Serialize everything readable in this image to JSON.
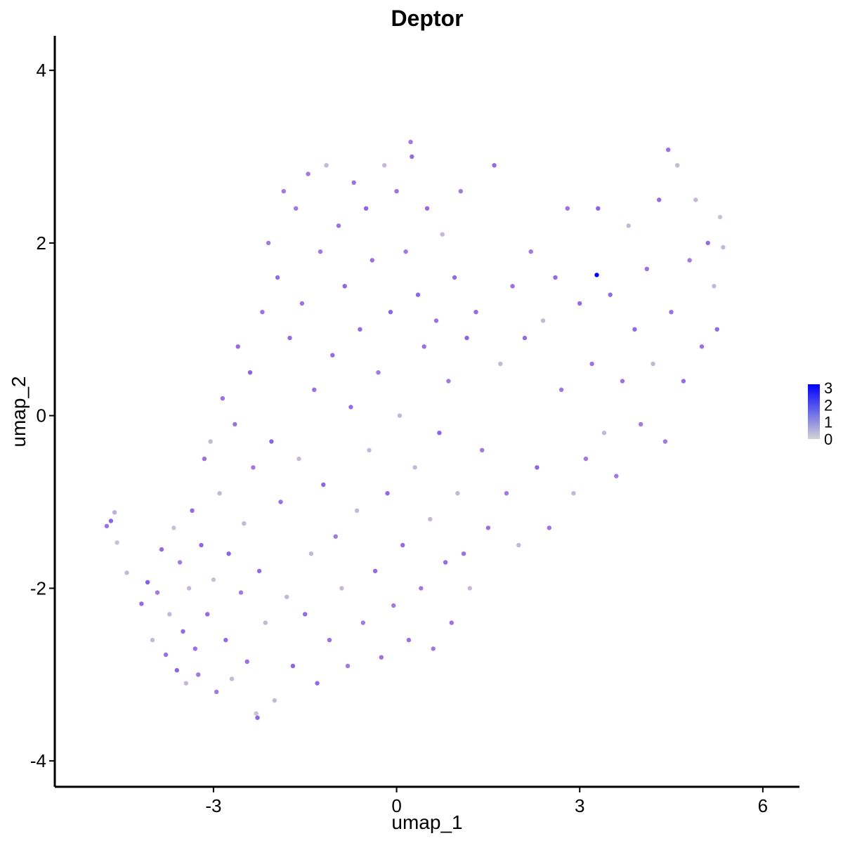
{
  "chart_data": {
    "type": "scatter",
    "title": "Deptor",
    "xlabel": "umap_1",
    "ylabel": "umap_2",
    "xlim": [
      -5.6,
      6.6
    ],
    "ylim": [
      -4.3,
      4.4
    ],
    "x_ticks": [
      -3,
      0,
      3,
      6
    ],
    "y_ticks": [
      -4,
      -2,
      0,
      2,
      4
    ],
    "x_tick_labels": [
      "-3",
      "0",
      "3",
      "6"
    ],
    "y_tick_labels": [
      "-4",
      "-2",
      "0",
      "2",
      "4"
    ],
    "grid": false,
    "legend_position": "right",
    "color_scale": {
      "low_color": "#d3d3d3",
      "high_color": "#0000ff",
      "min": 0,
      "max": 3.2,
      "breaks": [
        0,
        1,
        2,
        3
      ],
      "break_labels": [
        "0",
        "1",
        "2",
        "3"
      ]
    },
    "point_color_mid": "#9b6fe0",
    "highlight_point": {
      "x": 3.28,
      "y": 1.63,
      "value": 3.2
    },
    "points": [
      [
        -4.75,
        -1.28,
        1.1
      ],
      [
        -4.68,
        -1.22,
        1.3
      ],
      [
        -4.62,
        -1.12,
        0.4
      ],
      [
        -4.58,
        -1.47,
        0.2
      ],
      [
        -4.42,
        -1.82,
        0.3
      ],
      [
        -4.18,
        -2.18,
        1.2
      ],
      [
        -4.08,
        -1.93,
        1.4
      ],
      [
        -4.0,
        -2.6,
        0.3
      ],
      [
        -3.92,
        -2.05,
        1.0
      ],
      [
        -3.85,
        -1.55,
        1.2
      ],
      [
        -3.78,
        -2.77,
        1.1
      ],
      [
        -3.72,
        -2.3,
        0.3
      ],
      [
        -3.65,
        -1.3,
        0.2
      ],
      [
        -3.6,
        -2.95,
        1.3
      ],
      [
        -3.55,
        -1.7,
        1.0
      ],
      [
        -3.5,
        -2.5,
        1.2
      ],
      [
        -3.45,
        -3.1,
        0.3
      ],
      [
        -3.4,
        -2.0,
        0.3
      ],
      [
        -3.35,
        -1.1,
        1.2
      ],
      [
        -3.3,
        -2.7,
        1.1
      ],
      [
        -3.25,
        -3.0,
        1.0
      ],
      [
        -3.2,
        -1.5,
        1.3
      ],
      [
        -3.15,
        -0.5,
        1.1
      ],
      [
        -3.1,
        -2.3,
        1.2
      ],
      [
        -3.05,
        -0.3,
        0.3
      ],
      [
        -3.0,
        -1.9,
        0.2
      ],
      [
        -2.95,
        -3.2,
        1.0
      ],
      [
        -2.9,
        -0.9,
        0.3
      ],
      [
        -2.85,
        0.2,
        1.1
      ],
      [
        -2.8,
        -2.6,
        1.2
      ],
      [
        -2.75,
        -1.6,
        1.3
      ],
      [
        -2.7,
        -3.05,
        0.3
      ],
      [
        -2.65,
        -0.1,
        1.1
      ],
      [
        -2.6,
        0.8,
        1.2
      ],
      [
        -2.55,
        -2.05,
        1.0
      ],
      [
        -2.5,
        -1.25,
        0.3
      ],
      [
        -2.45,
        -2.85,
        1.1
      ],
      [
        -2.4,
        0.5,
        1.3
      ],
      [
        -2.35,
        -0.6,
        1.0
      ],
      [
        -2.3,
        -3.45,
        0.2
      ],
      [
        -2.25,
        -1.8,
        1.2
      ],
      [
        -2.2,
        1.2,
        1.1
      ],
      [
        -2.15,
        -2.4,
        0.3
      ],
      [
        -2.1,
        2.0,
        1.0
      ],
      [
        -2.05,
        -0.3,
        1.3
      ],
      [
        -2.0,
        -3.3,
        0.3
      ],
      [
        -1.95,
        1.6,
        1.2
      ],
      [
        -1.9,
        -1.0,
        1.1
      ],
      [
        -1.85,
        2.6,
        1.0
      ],
      [
        -1.8,
        -2.1,
        0.3
      ],
      [
        -1.75,
        0.9,
        1.2
      ],
      [
        -1.7,
        -2.9,
        1.3
      ],
      [
        -1.65,
        2.4,
        1.0
      ],
      [
        -1.6,
        -0.5,
        0.3
      ],
      [
        -1.55,
        1.3,
        1.1
      ],
      [
        -1.5,
        -2.3,
        1.2
      ],
      [
        -1.45,
        2.8,
        1.0
      ],
      [
        -1.4,
        -1.6,
        0.3
      ],
      [
        -1.35,
        0.3,
        1.1
      ],
      [
        -1.3,
        -3.1,
        1.2
      ],
      [
        -1.25,
        1.9,
        1.0
      ],
      [
        -1.2,
        -0.8,
        1.3
      ],
      [
        -1.15,
        2.9,
        0.3
      ],
      [
        -1.1,
        -2.6,
        1.1
      ],
      [
        -1.05,
        0.7,
        1.2
      ],
      [
        -1.0,
        -1.4,
        1.0
      ],
      [
        -0.95,
        2.2,
        1.1
      ],
      [
        -0.9,
        -2.0,
        0.3
      ],
      [
        -0.85,
        1.5,
        1.3
      ],
      [
        -0.8,
        -2.9,
        1.0
      ],
      [
        -0.75,
        0.1,
        1.2
      ],
      [
        -0.7,
        2.7,
        1.1
      ],
      [
        -0.65,
        -1.1,
        0.3
      ],
      [
        -0.6,
        1.0,
        1.2
      ],
      [
        -0.55,
        -2.4,
        1.0
      ],
      [
        -0.5,
        2.4,
        1.3
      ],
      [
        -0.45,
        -0.4,
        0.3
      ],
      [
        -0.4,
        1.8,
        1.1
      ],
      [
        -0.35,
        -1.8,
        1.2
      ],
      [
        -0.3,
        0.5,
        1.0
      ],
      [
        -0.25,
        -2.8,
        1.1
      ],
      [
        -0.2,
        2.9,
        0.3
      ],
      [
        -0.15,
        -0.9,
        1.2
      ],
      [
        -0.1,
        1.2,
        1.3
      ],
      [
        -0.05,
        -2.2,
        1.0
      ],
      [
        0.0,
        2.6,
        1.1
      ],
      [
        0.05,
        0.0,
        0.3
      ],
      [
        0.1,
        -1.5,
        1.2
      ],
      [
        0.15,
        1.9,
        1.0
      ],
      [
        0.2,
        -2.6,
        1.1
      ],
      [
        0.25,
        3.0,
        1.2
      ],
      [
        0.3,
        -0.6,
        0.3
      ],
      [
        0.35,
        1.4,
        1.3
      ],
      [
        0.4,
        -2.0,
        1.0
      ],
      [
        0.45,
        0.8,
        1.1
      ],
      [
        0.5,
        2.4,
        1.2
      ],
      [
        0.55,
        -1.2,
        0.3
      ],
      [
        0.6,
        -2.7,
        1.0
      ],
      [
        0.65,
        1.1,
        1.1
      ],
      [
        0.7,
        -0.2,
        1.3
      ],
      [
        0.75,
        2.1,
        0.3
      ],
      [
        0.8,
        -1.7,
        1.2
      ],
      [
        0.85,
        0.4,
        1.0
      ],
      [
        0.9,
        -2.4,
        1.1
      ],
      [
        0.95,
        1.6,
        1.2
      ],
      [
        1.0,
        -0.9,
        0.3
      ],
      [
        1.05,
        2.6,
        1.0
      ],
      [
        1.1,
        -1.6,
        1.1
      ],
      [
        1.15,
        0.9,
        1.3
      ],
      [
        1.2,
        -2.0,
        0.3
      ],
      [
        1.3,
        1.2,
        1.2
      ],
      [
        1.4,
        -0.4,
        1.0
      ],
      [
        1.5,
        -1.3,
        1.1
      ],
      [
        1.6,
        2.9,
        1.2
      ],
      [
        1.7,
        0.6,
        0.3
      ],
      [
        1.8,
        -0.9,
        1.0
      ],
      [
        1.9,
        1.5,
        1.1
      ],
      [
        2.0,
        -1.5,
        0.3
      ],
      [
        2.1,
        0.9,
        1.2
      ],
      [
        2.2,
        1.9,
        1.0
      ],
      [
        2.3,
        -0.6,
        1.3
      ],
      [
        2.4,
        1.1,
        0.3
      ],
      [
        2.5,
        -1.3,
        1.1
      ],
      [
        2.6,
        1.6,
        1.2
      ],
      [
        2.7,
        0.3,
        1.0
      ],
      [
        2.8,
        2.4,
        1.1
      ],
      [
        2.9,
        -0.9,
        0.3
      ],
      [
        3.0,
        1.3,
        1.2
      ],
      [
        3.1,
        -0.5,
        1.0
      ],
      [
        3.2,
        0.6,
        1.1
      ],
      [
        3.3,
        2.4,
        1.3
      ],
      [
        3.4,
        -0.2,
        0.3
      ],
      [
        3.5,
        1.4,
        1.2
      ],
      [
        3.6,
        -0.7,
        1.0
      ],
      [
        3.7,
        0.4,
        1.1
      ],
      [
        3.8,
        2.2,
        0.3
      ],
      [
        3.9,
        1.0,
        1.2
      ],
      [
        4.0,
        -0.1,
        1.0
      ],
      [
        4.1,
        1.7,
        1.1
      ],
      [
        4.2,
        0.6,
        0.3
      ],
      [
        4.3,
        2.5,
        1.2
      ],
      [
        4.4,
        -0.3,
        1.0
      ],
      [
        4.5,
        1.2,
        1.1
      ],
      [
        4.6,
        2.9,
        0.3
      ],
      [
        4.7,
        0.4,
        1.2
      ],
      [
        4.8,
        1.8,
        1.0
      ],
      [
        4.9,
        2.5,
        0.3
      ],
      [
        5.0,
        0.8,
        1.1
      ],
      [
        5.1,
        2.0,
        1.2
      ],
      [
        5.2,
        1.5,
        0.3
      ],
      [
        5.3,
        2.3,
        0.2
      ],
      [
        5.35,
        1.95,
        0.3
      ],
      [
        5.25,
        1.0,
        1.2
      ],
      [
        4.45,
        3.08,
        1.1
      ],
      [
        0.23,
        3.17,
        1.0
      ],
      [
        -2.28,
        -3.5,
        1.3
      ],
      [
        3.28,
        1.63,
        3.2
      ]
    ]
  }
}
